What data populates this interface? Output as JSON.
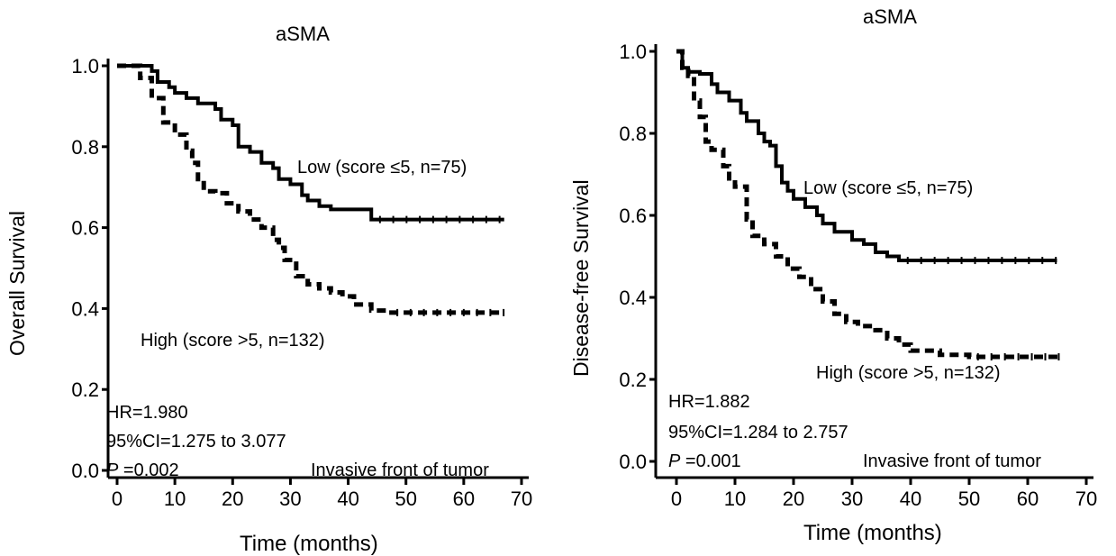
{
  "chart_data": [
    {
      "type": "line",
      "title": "aSMA",
      "xlabel": "Time (months)",
      "ylabel": "Overall Survival",
      "xlim": [
        0,
        70
      ],
      "ylim": [
        0,
        1.0
      ],
      "xticks": [
        "0",
        "10",
        "20",
        "30",
        "40",
        "50",
        "60",
        "70"
      ],
      "yticks": [
        "0.0",
        "0.2",
        "0.4",
        "0.6",
        "0.8",
        "1.0"
      ],
      "series": [
        {
          "name": "Low (score ≤5, n=75)",
          "style": "solid",
          "x": [
            0,
            5,
            6,
            7,
            9,
            10,
            12,
            14,
            17,
            18,
            20,
            21,
            23,
            25,
            27,
            28,
            30,
            32,
            33,
            35,
            37,
            40,
            44,
            67
          ],
          "y": [
            1.0,
            1.0,
            0.987,
            0.96,
            0.947,
            0.933,
            0.92,
            0.907,
            0.893,
            0.867,
            0.853,
            0.8,
            0.787,
            0.76,
            0.747,
            0.72,
            0.707,
            0.68,
            0.667,
            0.653,
            0.645,
            0.645,
            0.62,
            0.62
          ]
        },
        {
          "name": "High (score >5, n=132)",
          "style": "dashed",
          "x": [
            0,
            4,
            6,
            8,
            10,
            12,
            13,
            14,
            15,
            17,
            19,
            21,
            23,
            25,
            27,
            28,
            29,
            31,
            33,
            35,
            37,
            39,
            41,
            44,
            47,
            67
          ],
          "y": [
            1.0,
            0.97,
            0.92,
            0.86,
            0.83,
            0.79,
            0.76,
            0.72,
            0.69,
            0.685,
            0.66,
            0.64,
            0.62,
            0.6,
            0.57,
            0.55,
            0.52,
            0.48,
            0.46,
            0.45,
            0.44,
            0.43,
            0.41,
            0.395,
            0.39,
            0.39
          ]
        }
      ],
      "annotations": {
        "hr": "HR=1.980",
        "ci": "95%CI=1.275  to 3.077",
        "p_label": "P",
        "p_value": " =0.002",
        "location": "Invasive  front  of tumor"
      }
    },
    {
      "type": "line",
      "title": "aSMA",
      "xlabel": "Time (months)",
      "ylabel": "Disease-free Survival",
      "xlim": [
        0,
        70
      ],
      "ylim": [
        0,
        1.0
      ],
      "xticks": [
        "0",
        "10",
        "20",
        "30",
        "40",
        "50",
        "60",
        "70"
      ],
      "yticks": [
        "0.0",
        "0.2",
        "0.4",
        "0.6",
        "0.8",
        "1.0"
      ],
      "series": [
        {
          "name": "Low (score ≤5, n=75)",
          "style": "solid",
          "x": [
            0,
            1,
            2,
            4,
            6,
            7,
            9,
            11,
            12,
            14,
            15,
            16,
            17,
            18,
            19,
            20,
            22,
            24,
            25,
            27,
            30,
            32,
            34,
            36,
            38,
            65
          ],
          "y": [
            1.0,
            0.96,
            0.95,
            0.945,
            0.92,
            0.9,
            0.88,
            0.85,
            0.83,
            0.8,
            0.78,
            0.77,
            0.72,
            0.68,
            0.66,
            0.64,
            0.62,
            0.6,
            0.58,
            0.56,
            0.54,
            0.53,
            0.51,
            0.5,
            0.49,
            0.49
          ]
        },
        {
          "name": "High (score >5, n=132)",
          "style": "dashed",
          "x": [
            0,
            1,
            2,
            3,
            4,
            5,
            6,
            8,
            9,
            10,
            12,
            13,
            15,
            17,
            19,
            21,
            23,
            25,
            27,
            29,
            31,
            34,
            36,
            38,
            40,
            45,
            50,
            66
          ],
          "y": [
            1.0,
            0.96,
            0.94,
            0.88,
            0.84,
            0.78,
            0.76,
            0.72,
            0.69,
            0.67,
            0.59,
            0.55,
            0.53,
            0.5,
            0.47,
            0.45,
            0.42,
            0.39,
            0.36,
            0.34,
            0.33,
            0.32,
            0.3,
            0.285,
            0.27,
            0.26,
            0.255,
            0.255
          ]
        }
      ],
      "annotations": {
        "hr": "HR=1.882",
        "ci": "95%CI=1.284  to 2.757",
        "p_label": "P",
        "p_value": " =0.001",
        "location": "Invasive  front  of tumor"
      }
    }
  ]
}
